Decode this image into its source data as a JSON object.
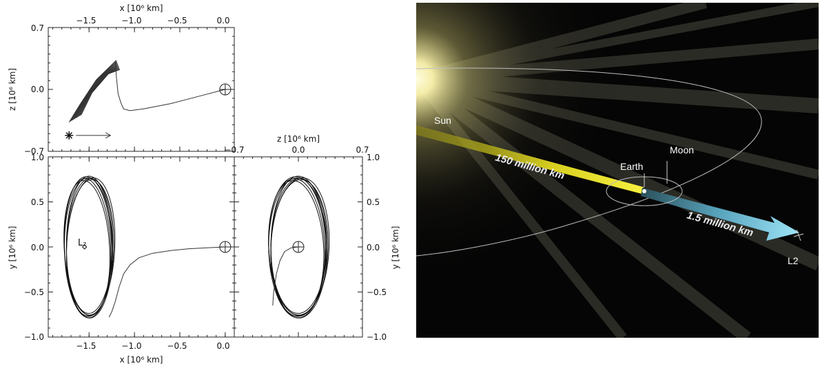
{
  "left_figure": {
    "panel_xz": {
      "x_axis_title": "x [10⁶ km]",
      "z_axis_title": "z [10⁶ km]",
      "x_ticks": [
        "−1.5",
        "−1.0",
        "−0.5",
        "0.0"
      ],
      "z_ticks": [
        "0.7",
        "0.0",
        "−0.7"
      ]
    },
    "panel_xy": {
      "x_axis_title": "x [10⁶ km]",
      "y_axis_title": "y [10⁶ km]",
      "x_ticks": [
        "−1.5",
        "−1.0",
        "−0.5",
        "0.0"
      ],
      "y_ticks": [
        "1.0",
        "0.5",
        "0.0",
        "−0.5",
        "−1.0"
      ],
      "l2_label": "L₂"
    },
    "panel_zy": {
      "z_axis_title": "z [10⁶ km]",
      "y_axis_title": "y [10⁶ km]",
      "z_ticks": [
        "−0.7",
        "0.0",
        "0.7"
      ],
      "y_ticks": [
        "1.0",
        "0.5",
        "0.0",
        "−0.5",
        "−1.0"
      ]
    }
  },
  "chart_data": [
    {
      "type": "line",
      "panel": "x-z projection",
      "xlabel": "x [10⁶ km]",
      "ylabel": "z [10⁶ km]",
      "xlim": [
        -1.95,
        0.1
      ],
      "ylim": [
        -0.7,
        0.7
      ],
      "series": [
        {
          "x": [
            0.0,
            -0.3,
            -0.6,
            -0.9,
            -1.05,
            -1.12,
            -1.15,
            -1.18,
            -1.2,
            -1.21
          ],
          "y": [
            0.0,
            -0.08,
            -0.16,
            -0.22,
            -0.24,
            -0.22,
            -0.15,
            -0.05,
            0.15,
            0.31
          ]
        }
      ],
      "orbit_band": {
        "x": [
          -1.72,
          -1.2
        ],
        "y": [
          -0.37,
          0.33
        ]
      },
      "earth_marker": {
        "x": 0.0,
        "y": 0.0
      },
      "sun_direction_marker": {
        "x": -1.72,
        "y": -0.52
      }
    },
    {
      "type": "line",
      "panel": "x-y projection",
      "xlabel": "x [10⁶ km]",
      "ylabel": "y [10⁶ km]",
      "xlim": [
        -1.95,
        0.1
      ],
      "ylim": [
        -1.0,
        1.0
      ],
      "series": [
        {
          "x": [
            0.0,
            -0.2,
            -0.4,
            -0.6,
            -0.8,
            -0.95,
            -1.05,
            -1.12,
            -1.17,
            -1.21,
            -1.25,
            -1.28
          ],
          "y": [
            0.0,
            -0.01,
            -0.02,
            -0.04,
            -0.07,
            -0.12,
            -0.2,
            -0.3,
            -0.45,
            -0.6,
            -0.72,
            -0.78
          ]
        }
      ],
      "halo_orbit": {
        "center_x": -1.5,
        "center_y": 0.0,
        "half_width_x": 0.25,
        "half_height_y": 0.75
      },
      "earth_marker": {
        "x": 0.0,
        "y": 0.0
      },
      "l2_marker": {
        "x": -1.55,
        "y": 0.0
      }
    },
    {
      "type": "line",
      "panel": "z-y projection",
      "xlabel": "z [10⁶ km]",
      "ylabel": "y [10⁶ km]",
      "xlim": [
        -0.7,
        0.7
      ],
      "ylim": [
        -1.0,
        1.0
      ],
      "series": [
        {
          "x": [
            0.0,
            -0.08,
            -0.15,
            -0.2,
            -0.24,
            -0.27,
            -0.28
          ],
          "y": [
            0.0,
            -0.01,
            -0.05,
            -0.15,
            -0.3,
            -0.5,
            -0.65
          ]
        }
      ],
      "halo_orbit": {
        "center_x": 0.0,
        "center_y": 0.0,
        "half_width_x": 0.3,
        "half_height_y": 0.75
      },
      "earth_marker": {
        "x": 0.0,
        "y": 0.0
      }
    }
  ],
  "diagram": {
    "labels": {
      "sun": "Sun",
      "earth": "Earth",
      "moon": "Moon",
      "l2": "L2",
      "sun_earth_distance": "150 million km",
      "earth_l2_distance": "1.5 million km"
    },
    "colors": {
      "background": "#050505",
      "sun_glow": "#fff9c8",
      "sun_earth_beam": "#e8e02a",
      "earth_l2_arrow": "#8ad6ea",
      "orbit_line": "#bdbdbd"
    }
  }
}
